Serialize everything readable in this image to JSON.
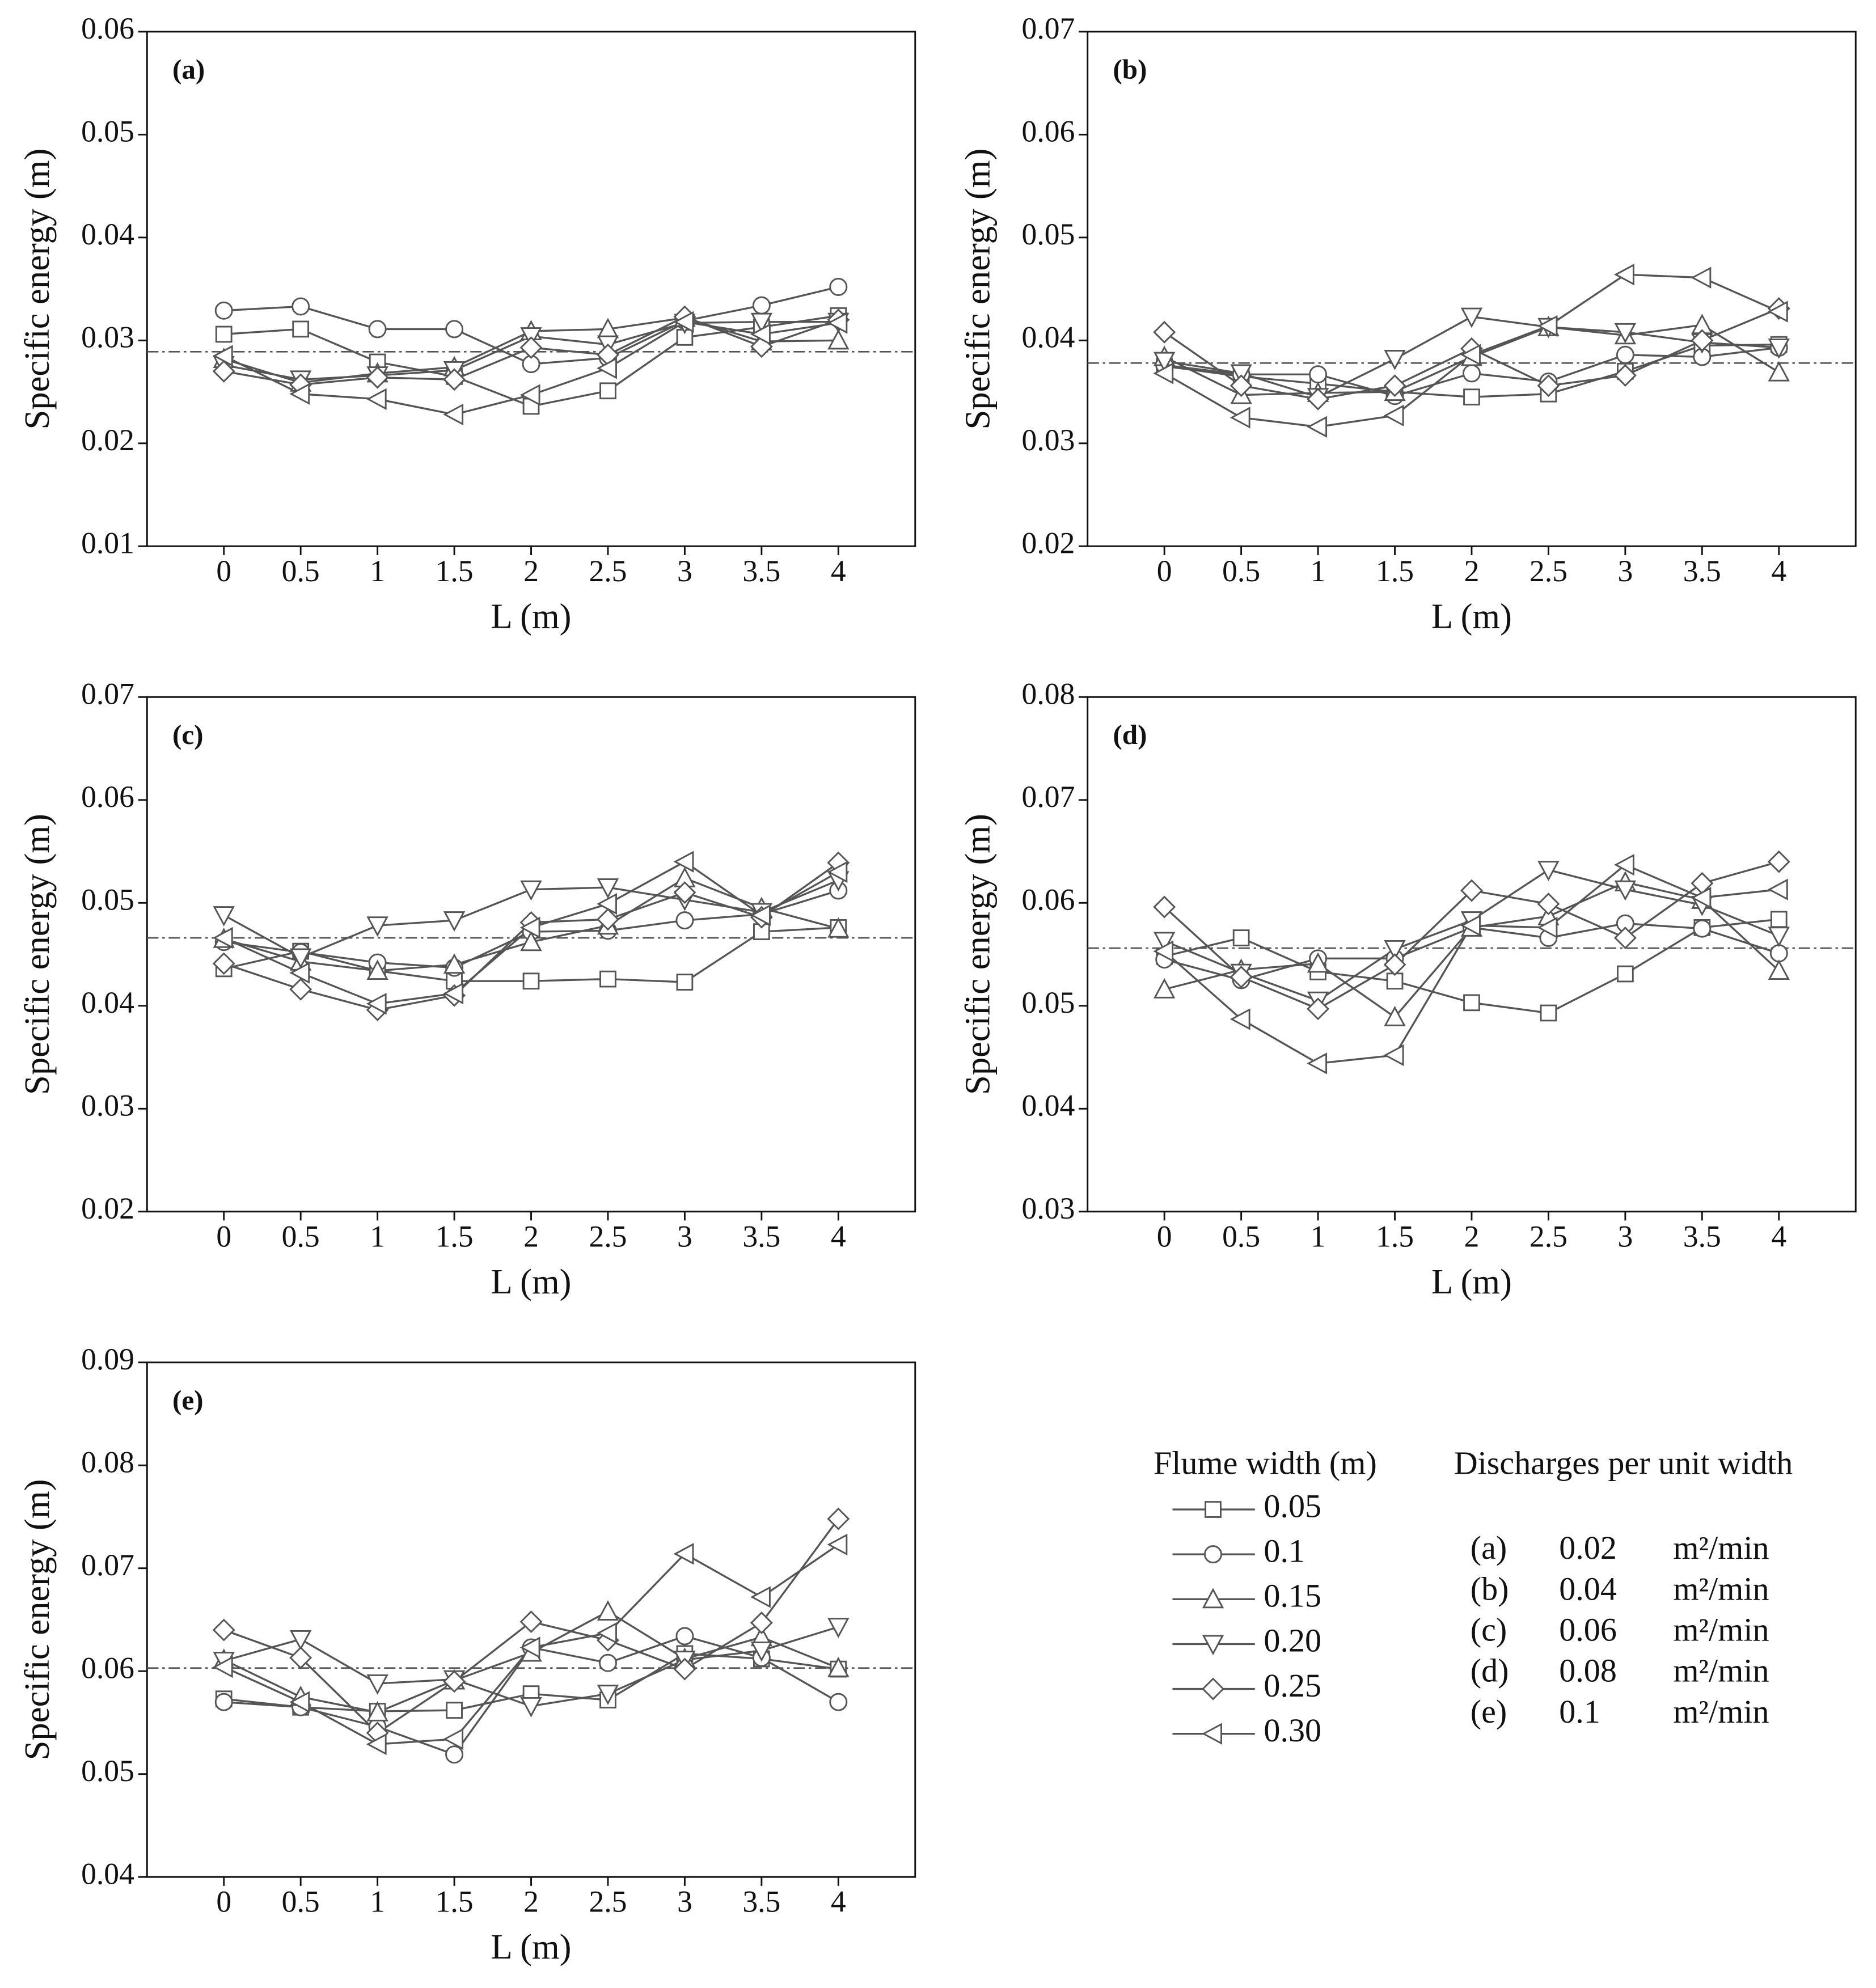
{
  "chart_data": [
    {
      "type": "line",
      "label": "(a)",
      "ylabel": "Specific energy (m)",
      "xlabel": "L (m)",
      "x": [
        0,
        0.5,
        1,
        1.5,
        2,
        2.5,
        3,
        3.5,
        4
      ],
      "xlim": [
        -0.5,
        4.5
      ],
      "xticks": [
        0,
        0.5,
        1,
        1.5,
        2,
        2.5,
        3,
        3.5,
        4
      ],
      "ylim": [
        0.01,
        0.06
      ],
      "yticks": [
        0.01,
        0.02,
        0.03,
        0.04,
        0.05,
        0.06
      ],
      "hline": 0.0289,
      "series": [
        {
          "name": "0.05",
          "color": "#555555",
          "marker": "square",
          "values": [
            0.0306,
            0.0311,
            0.0279,
            0.0265,
            0.0236,
            0.0251,
            0.0303,
            0.0313,
            0.0324
          ]
        },
        {
          "name": "0.1",
          "color": "#555555",
          "marker": "circle",
          "values": [
            0.0329,
            0.0333,
            0.0311,
            0.0311,
            0.0277,
            0.0283,
            0.0319,
            0.0334,
            0.0352
          ]
        },
        {
          "name": "0.15",
          "color": "#555555",
          "marker": "triangle-up",
          "values": [
            0.0282,
            0.0259,
            0.0268,
            0.0274,
            0.0309,
            0.0311,
            0.0322,
            0.0299,
            0.03
          ]
        },
        {
          "name": "0.20",
          "color": "#555555",
          "marker": "triangle-down",
          "values": [
            0.0276,
            0.0262,
            0.0266,
            0.0271,
            0.0304,
            0.0296,
            0.0317,
            0.0318,
            0.0318
          ]
        },
        {
          "name": "0.25",
          "color": "#555555",
          "marker": "diamond",
          "values": [
            0.027,
            0.0257,
            0.0264,
            0.0262,
            0.0293,
            0.0286,
            0.0323,
            0.0294,
            0.032
          ]
        },
        {
          "name": "0.30",
          "color": "#555555",
          "marker": "triangle-left",
          "values": [
            0.0285,
            0.0248,
            0.0243,
            0.0228,
            0.0247,
            0.0273,
            0.0318,
            0.0306,
            0.0317
          ]
        }
      ]
    },
    {
      "type": "line",
      "label": "(b)",
      "ylabel": "Specific energy (m)",
      "xlabel": "L (m)",
      "x": [
        0,
        0.5,
        1,
        1.5,
        2,
        2.5,
        3,
        3.5,
        4
      ],
      "xlim": [
        -0.5,
        4.5
      ],
      "xticks": [
        0,
        0.5,
        1,
        1.5,
        2,
        2.5,
        3,
        3.5,
        4
      ],
      "ylim": [
        0.02,
        0.07
      ],
      "yticks": [
        0.02,
        0.03,
        0.04,
        0.05,
        0.06,
        0.07
      ],
      "hline": 0.0378,
      "series": [
        {
          "color": "#555555",
          "marker": "square",
          "values": [
            0.0375,
            0.0365,
            0.0358,
            0.035,
            0.0345,
            0.0348,
            0.037,
            0.0395,
            0.0396
          ]
        },
        {
          "color": "#555555",
          "marker": "circle",
          "values": [
            0.0376,
            0.0367,
            0.0367,
            0.0346,
            0.0368,
            0.036,
            0.0386,
            0.0384,
            0.0393
          ]
        },
        {
          "color": "#555555",
          "marker": "triangle-up",
          "values": [
            0.0384,
            0.0347,
            0.0349,
            0.035,
            0.0384,
            0.0413,
            0.0405,
            0.0415,
            0.0369
          ]
        },
        {
          "color": "#555555",
          "marker": "triangle-down",
          "values": [
            0.038,
            0.0368,
            0.0345,
            0.0382,
            0.0423,
            0.0413,
            0.0408,
            0.0398,
            0.0393
          ]
        },
        {
          "color": "#555555",
          "marker": "diamond",
          "values": [
            0.0408,
            0.0356,
            0.0343,
            0.0356,
            0.0392,
            0.0356,
            0.0366,
            0.04,
            0.0431
          ]
        },
        {
          "color": "#555555",
          "marker": "triangle-left",
          "values": [
            0.0368,
            0.0325,
            0.0316,
            0.0327,
            0.0386,
            0.0414,
            0.0464,
            0.0461,
            0.0428
          ]
        }
      ]
    },
    {
      "type": "line",
      "label": "(c)",
      "ylabel": "Specific energy (m)",
      "xlabel": "L (m)",
      "x": [
        0,
        0.5,
        1,
        1.5,
        2,
        2.5,
        3,
        3.5,
        4
      ],
      "xlim": [
        -0.5,
        4.5
      ],
      "xticks": [
        0,
        0.5,
        1,
        1.5,
        2,
        2.5,
        3,
        3.5,
        4
      ],
      "ylim": [
        0.02,
        0.07
      ],
      "yticks": [
        0.02,
        0.03,
        0.04,
        0.05,
        0.06,
        0.07
      ],
      "hline": 0.0466,
      "series": [
        {
          "color": "#555555",
          "marker": "square",
          "values": [
            0.0436,
            0.0453,
            0.0434,
            0.0424,
            0.0424,
            0.0426,
            0.0423,
            0.0472,
            0.0476
          ]
        },
        {
          "color": "#555555",
          "marker": "circle",
          "values": [
            0.0462,
            0.0452,
            0.0442,
            0.0437,
            0.0472,
            0.0473,
            0.0483,
            0.0489,
            0.0512
          ]
        },
        {
          "color": "#555555",
          "marker": "triangle-up",
          "values": [
            0.0465,
            0.0443,
            0.0434,
            0.044,
            0.0462,
            0.0478,
            0.0524,
            0.0495,
            0.0475
          ]
        },
        {
          "color": "#555555",
          "marker": "triangle-down",
          "values": [
            0.0488,
            0.0447,
            0.0478,
            0.0483,
            0.0513,
            0.0515,
            0.0503,
            0.0491,
            0.0522
          ]
        },
        {
          "color": "#555555",
          "marker": "diamond",
          "values": [
            0.0441,
            0.0416,
            0.0396,
            0.041,
            0.0481,
            0.0484,
            0.051,
            0.0486,
            0.0539
          ]
        },
        {
          "color": "#555555",
          "marker": "triangle-left",
          "values": [
            0.0466,
            0.0432,
            0.0402,
            0.0412,
            0.0476,
            0.0499,
            0.054,
            0.0488,
            0.053
          ]
        }
      ]
    },
    {
      "type": "line",
      "label": "(d)",
      "ylabel": "Specific energy (m)",
      "xlabel": "L (m)",
      "x": [
        0,
        0.5,
        1,
        1.5,
        2,
        2.5,
        3,
        3.5,
        4
      ],
      "xlim": [
        -0.5,
        4.5
      ],
      "xticks": [
        0,
        0.5,
        1,
        1.5,
        2,
        2.5,
        3,
        3.5,
        4
      ],
      "ylim": [
        0.03,
        0.08
      ],
      "yticks": [
        0.03,
        0.04,
        0.05,
        0.06,
        0.07,
        0.08
      ],
      "hline": 0.0556,
      "series": [
        {
          "color": "#555555",
          "marker": "square",
          "values": [
            0.0548,
            0.0566,
            0.0533,
            0.0524,
            0.0503,
            0.0493,
            0.0531,
            0.0576,
            0.0584
          ]
        },
        {
          "color": "#555555",
          "marker": "circle",
          "values": [
            0.0545,
            0.0525,
            0.0546,
            0.0546,
            0.0576,
            0.0566,
            0.058,
            0.0575,
            0.0551
          ]
        },
        {
          "color": "#555555",
          "marker": "triangle-up",
          "values": [
            0.0516,
            0.0535,
            0.0541,
            0.0489,
            0.0576,
            0.0587,
            0.062,
            0.0603,
            0.0534
          ]
        },
        {
          "color": "#555555",
          "marker": "triangle-down",
          "values": [
            0.0563,
            0.0532,
            0.0505,
            0.0555,
            0.0583,
            0.0632,
            0.0613,
            0.0598,
            0.0568
          ]
        },
        {
          "color": "#555555",
          "marker": "diamond",
          "values": [
            0.0596,
            0.0528,
            0.0497,
            0.054,
            0.0612,
            0.0599,
            0.0566,
            0.0619,
            0.064
          ]
        },
        {
          "color": "#555555",
          "marker": "triangle-left",
          "values": [
            0.0553,
            0.0487,
            0.0444,
            0.0452,
            0.0578,
            0.0576,
            0.0637,
            0.0605,
            0.0613
          ]
        }
      ]
    },
    {
      "type": "line",
      "label": "(e)",
      "ylabel": "Specific energy (m)",
      "xlabel": "L (m)",
      "x": [
        0,
        0.5,
        1,
        1.5,
        2,
        2.5,
        3,
        3.5,
        4
      ],
      "xlim": [
        -0.5,
        4.5
      ],
      "xticks": [
        0,
        0.5,
        1,
        1.5,
        2,
        2.5,
        3,
        3.5,
        4
      ],
      "ylim": [
        0.04,
        0.09
      ],
      "yticks": [
        0.04,
        0.05,
        0.06,
        0.07,
        0.08,
        0.09
      ],
      "hline": 0.0603,
      "series": [
        {
          "color": "#555555",
          "marker": "square",
          "values": [
            0.0573,
            0.0565,
            0.0561,
            0.0562,
            0.0578,
            0.0572,
            0.0617,
            0.0612,
            0.0602
          ]
        },
        {
          "color": "#555555",
          "marker": "circle",
          "values": [
            0.057,
            0.0565,
            0.0546,
            0.0519,
            0.0623,
            0.0608,
            0.0634,
            0.0613,
            0.057
          ]
        },
        {
          "color": "#555555",
          "marker": "triangle-up",
          "values": [
            0.0611,
            0.0575,
            0.056,
            0.0591,
            0.0618,
            0.0658,
            0.0612,
            0.0633,
            0.0603
          ]
        },
        {
          "color": "#555555",
          "marker": "triangle-down",
          "values": [
            0.061,
            0.0631,
            0.0588,
            0.0592,
            0.0566,
            0.0578,
            0.0611,
            0.062,
            0.0643
          ]
        },
        {
          "color": "#555555",
          "marker": "diamond",
          "values": [
            0.064,
            0.0613,
            0.054,
            0.059,
            0.0648,
            0.063,
            0.0602,
            0.0647,
            0.0748
          ]
        },
        {
          "color": "#555555",
          "marker": "triangle-left",
          "values": [
            0.0604,
            0.057,
            0.0529,
            0.0534,
            0.0623,
            0.0637,
            0.0714,
            0.0672,
            0.0723
          ]
        }
      ]
    }
  ],
  "legend_title": "Flume width (m)",
  "discharges": {
    "title": "Discharges per unit width",
    "rows": [
      {
        "panel": "(a)",
        "value": 0.02,
        "unit": "m²/min"
      },
      {
        "panel": "(b)",
        "value": 0.04,
        "unit": "m²/min"
      },
      {
        "panel": "(c)",
        "value": 0.06,
        "unit": "m²/min"
      },
      {
        "panel": "(d)",
        "value": 0.08,
        "unit": "m²/min"
      },
      {
        "panel": "(e)",
        "value": 0.1,
        "unit": "m²/min"
      }
    ]
  }
}
